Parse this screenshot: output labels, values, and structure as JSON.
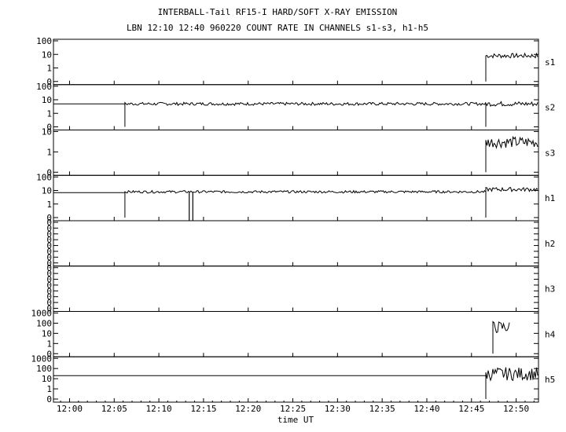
{
  "chart_data": {
    "type": "line",
    "title": "INTERBALL-Tail RF15-I HARD/SOFT X-RAY EMISSION",
    "subtitle": "LBN 12:10 12:40 960220  COUNT RATE IN CHANNELS s1-s3, h1-h5",
    "xlabel": "time UT",
    "x_ticks": [
      "12:00",
      "12:05",
      "12:10",
      "12:15",
      "12:20",
      "12:25",
      "12:30",
      "12:35",
      "12:40",
      "12:45",
      "12:50"
    ],
    "xlim_minutes": [
      -1.8,
      52.5
    ],
    "y_scale": "log",
    "grid": false,
    "panels": [
      {
        "name": "s1",
        "y_ticks": [
          "100",
          "10",
          "1",
          "0"
        ],
        "segments": [
          {
            "start": 46.6,
            "end": 52.5,
            "value": 8,
            "noise": 0.35
          }
        ],
        "drops": []
      },
      {
        "name": "s2",
        "y_ticks": [
          "100",
          "10",
          "1",
          "0"
        ],
        "segments": [
          {
            "start": -1.8,
            "end": 6.2,
            "value": 5,
            "noise": 0
          },
          {
            "start": 6.2,
            "end": 46.6,
            "value": 5,
            "noise": 0.22
          },
          {
            "start": 46.6,
            "end": 52.5,
            "value": 5,
            "noise": 0.35
          }
        ],
        "drops": []
      },
      {
        "name": "s3",
        "y_ticks": [
          "10",
          "1",
          "0"
        ],
        "segments": [
          {
            "start": 46.6,
            "end": 52.5,
            "value": 3,
            "noise": 0.55
          }
        ],
        "drops": []
      },
      {
        "name": "h1",
        "y_ticks": [
          "100",
          "10",
          "1",
          "0"
        ],
        "segments": [
          {
            "start": -1.8,
            "end": 6.2,
            "value": 7,
            "noise": 0
          },
          {
            "start": 6.2,
            "end": 46.6,
            "value": 8,
            "noise": 0.18
          },
          {
            "start": 46.6,
            "end": 52.5,
            "value": 12,
            "noise": 0.3
          }
        ],
        "drops": [
          13.4,
          13.8
        ]
      },
      {
        "name": "h2",
        "y_ticks": [
          "0",
          "0",
          "0",
          "0",
          "0",
          "0",
          "0",
          "0"
        ],
        "segments": [],
        "drops": []
      },
      {
        "name": "h3",
        "y_ticks": [
          "0",
          "0",
          "0",
          "0",
          "0",
          "0",
          "0",
          "0"
        ],
        "segments": [],
        "drops": []
      },
      {
        "name": "h4",
        "y_ticks": [
          "1000",
          "100",
          "10",
          "1",
          "0"
        ],
        "segments": [
          {
            "start": 47.4,
            "end": 49.3,
            "value": 40,
            "noise": 1.2
          }
        ],
        "drops": []
      },
      {
        "name": "h5",
        "y_ticks": [
          "1000",
          "100",
          "10",
          "1",
          "0"
        ],
        "segments": [
          {
            "start": -1.8,
            "end": 46.6,
            "value": 20,
            "noise": 0
          },
          {
            "start": 46.6,
            "end": 52.5,
            "value": 30,
            "noise": 1.3
          }
        ],
        "drops": []
      }
    ]
  }
}
